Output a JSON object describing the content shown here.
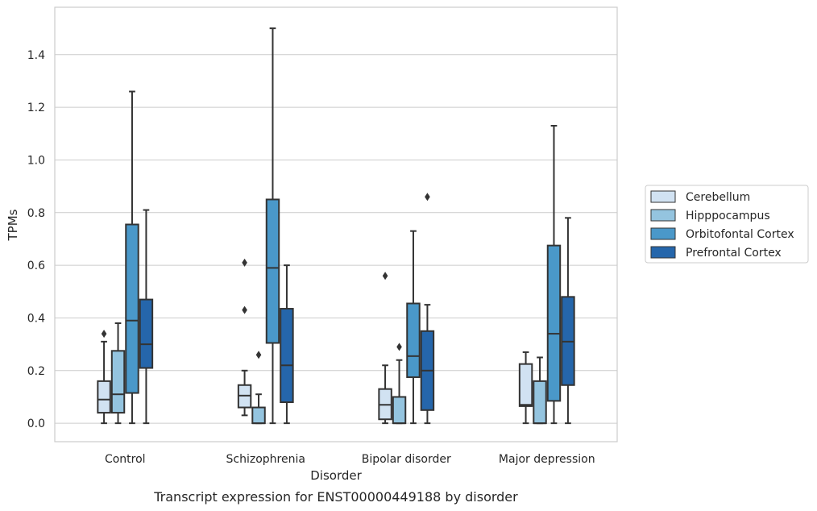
{
  "chart_data": {
    "type": "box",
    "xlabel": "Disorder",
    "ylabel": "TPMs",
    "caption": "Transcript expression for ENST00000449188 by disorder",
    "ylim": [
      -0.07,
      1.58
    ],
    "yticks": [
      0.0,
      0.2,
      0.4,
      0.6,
      0.8,
      1.0,
      1.2,
      1.4
    ],
    "ytick_labels": [
      "0.0",
      "0.2",
      "0.4",
      "0.6",
      "0.8",
      "1.0",
      "1.2",
      "1.4"
    ],
    "grid": "horizontal",
    "legend_position": "right",
    "categories": [
      "Control",
      "Schizophrenia",
      "Bipolar disorder",
      "Major depression"
    ],
    "series": [
      {
        "name": "Cerebellum",
        "color": "#d1e2f2",
        "boxes": [
          {
            "whisker_low": 0.0,
            "q1": 0.04,
            "median": 0.09,
            "q3": 0.16,
            "whisker_high": 0.31,
            "outliers": [
              0.34
            ]
          },
          {
            "whisker_low": 0.03,
            "q1": 0.06,
            "median": 0.105,
            "q3": 0.145,
            "whisker_high": 0.2,
            "outliers": [
              0.43,
              0.61
            ]
          },
          {
            "whisker_low": 0.0,
            "q1": 0.015,
            "median": 0.07,
            "q3": 0.13,
            "whisker_high": 0.22,
            "outliers": [
              0.56
            ]
          },
          {
            "whisker_low": 0.0,
            "q1": 0.065,
            "median": 0.07,
            "q3": 0.225,
            "whisker_high": 0.27,
            "outliers": []
          }
        ]
      },
      {
        "name": "Hipppocampus",
        "color": "#94c4df",
        "boxes": [
          {
            "whisker_low": 0.0,
            "q1": 0.04,
            "median": 0.11,
            "q3": 0.275,
            "whisker_high": 0.38,
            "outliers": []
          },
          {
            "whisker_low": 0.0,
            "q1": 0.0,
            "median": 0.0,
            "q3": 0.06,
            "whisker_high": 0.11,
            "outliers": [
              0.26
            ]
          },
          {
            "whisker_low": 0.0,
            "q1": 0.0,
            "median": 0.0,
            "q3": 0.1,
            "whisker_high": 0.24,
            "outliers": [
              0.29
            ]
          },
          {
            "whisker_low": 0.0,
            "q1": 0.0,
            "median": 0.0,
            "q3": 0.16,
            "whisker_high": 0.25,
            "outliers": []
          }
        ]
      },
      {
        "name": "Orbitofontal Cortex",
        "color": "#4a98c9",
        "boxes": [
          {
            "whisker_low": 0.0,
            "q1": 0.115,
            "median": 0.39,
            "q3": 0.755,
            "whisker_high": 1.26,
            "outliers": []
          },
          {
            "whisker_low": 0.0,
            "q1": 0.305,
            "median": 0.59,
            "q3": 0.85,
            "whisker_high": 1.5,
            "outliers": []
          },
          {
            "whisker_low": 0.0,
            "q1": 0.175,
            "median": 0.255,
            "q3": 0.455,
            "whisker_high": 0.73,
            "outliers": []
          },
          {
            "whisker_low": 0.0,
            "q1": 0.085,
            "median": 0.34,
            "q3": 0.675,
            "whisker_high": 1.13,
            "outliers": []
          }
        ]
      },
      {
        "name": "Prefrontal Cortex",
        "color": "#2566ab",
        "boxes": [
          {
            "whisker_low": 0.0,
            "q1": 0.21,
            "median": 0.3,
            "q3": 0.47,
            "whisker_high": 0.81,
            "outliers": []
          },
          {
            "whisker_low": 0.0,
            "q1": 0.08,
            "median": 0.22,
            "q3": 0.435,
            "whisker_high": 0.6,
            "outliers": []
          },
          {
            "whisker_low": 0.0,
            "q1": 0.05,
            "median": 0.2,
            "q3": 0.35,
            "whisker_high": 0.45,
            "outliers": [
              0.86
            ]
          },
          {
            "whisker_low": 0.0,
            "q1": 0.145,
            "median": 0.31,
            "q3": 0.48,
            "whisker_high": 0.78,
            "outliers": []
          }
        ]
      }
    ]
  },
  "style": {
    "frame_color": "#cccccc",
    "grid_color": "#cccccc",
    "box_edge_color": "#333333"
  }
}
